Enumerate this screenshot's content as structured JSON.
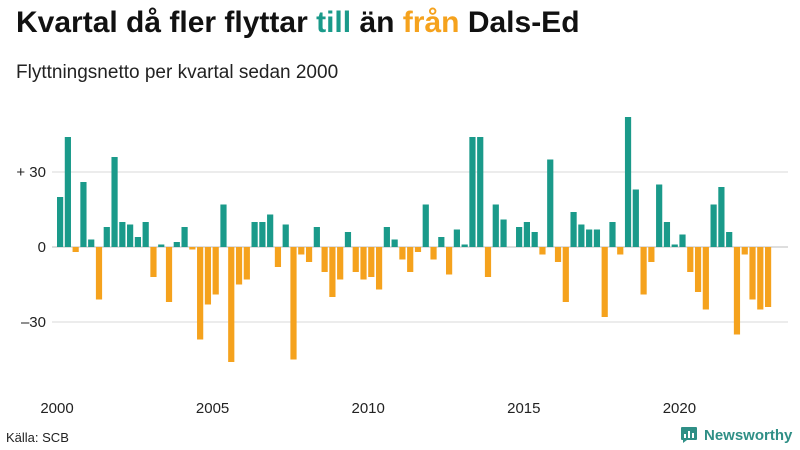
{
  "title": {
    "part1": "Kvartal då fler flyttar ",
    "till": "till",
    "part2": " än ",
    "fran": "från",
    "part3": " Dals-Ed"
  },
  "subtitle": "Flyttningsnetto per kvartal sedan 2000",
  "source": "Källa: SCB",
  "brand": {
    "name": "Newsworthy",
    "icon": "newsworthy-logo-icon"
  },
  "colors": {
    "positive": "#1a9a8a",
    "negative": "#f5a21d",
    "grid": "#d9d9d9",
    "text": "#111111"
  },
  "chart_data": {
    "type": "bar",
    "title": "Kvartal då fler flyttar till än från Dals-Ed",
    "subtitle": "Flyttningsnetto per kvartal sedan 2000",
    "xlabel": "",
    "ylabel": "",
    "start_year": 2000,
    "periods_per_year": 4,
    "x_ticks": [
      {
        "label": "2000",
        "year": 2000
      },
      {
        "label": "2005",
        "year": 2005
      },
      {
        "label": "2010",
        "year": 2010
      },
      {
        "label": "2015",
        "year": 2015
      },
      {
        "label": "2020",
        "year": 2020
      }
    ],
    "y_ticks": [
      {
        "label": "+ 30",
        "value": 30
      },
      {
        "label": "0",
        "value": 0
      },
      {
        "label": "–30",
        "value": -30
      }
    ],
    "ylim": [
      -46,
      52
    ],
    "series": [
      {
        "name": "Flyttningsnetto",
        "values": [
          20,
          44,
          -2,
          26,
          3,
          -21,
          8,
          36,
          10,
          9,
          4,
          10,
          -12,
          1,
          -22,
          2,
          8,
          -1,
          -37,
          -23,
          -19,
          17,
          -46,
          -15,
          -13,
          10,
          10,
          13,
          -8,
          9,
          -45,
          -3,
          -6,
          8,
          -10,
          -20,
          -13,
          6,
          -10,
          -13,
          -12,
          -17,
          8,
          3,
          -5,
          -10,
          -2,
          17,
          -5,
          4,
          -11,
          7,
          1,
          44,
          44,
          -12,
          17,
          11,
          0,
          8,
          10,
          6,
          -3,
          35,
          -6,
          -22,
          14,
          9,
          7,
          7,
          -28,
          10,
          -3,
          52,
          23,
          -19,
          -6,
          25,
          10,
          1,
          5,
          -10,
          -18,
          -25,
          17,
          24,
          6,
          -35,
          -3,
          -21,
          -25,
          -24
        ]
      }
    ]
  }
}
